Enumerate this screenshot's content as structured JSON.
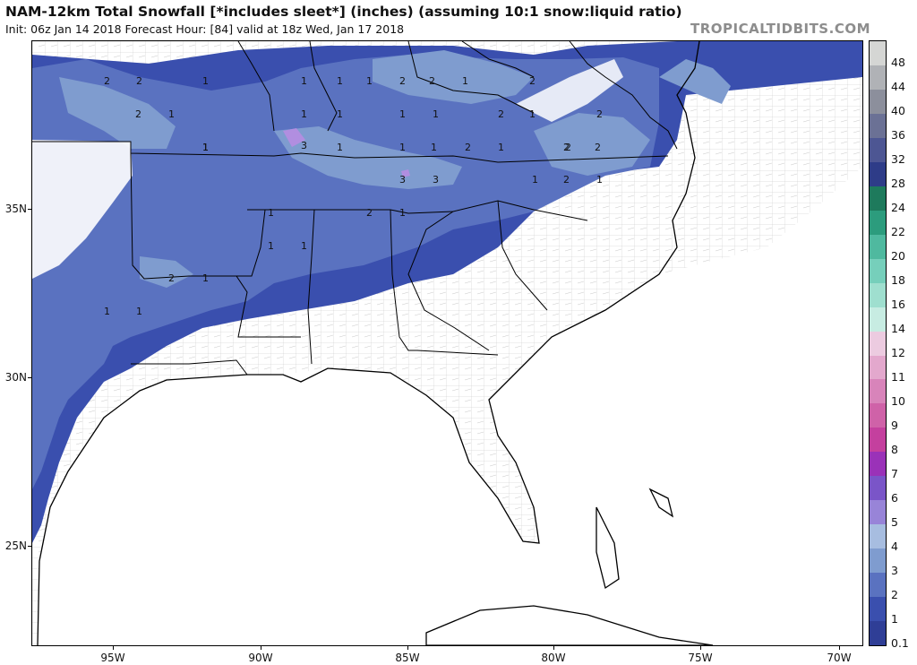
{
  "header": {
    "title": "NAM-12km Total Snowfall [*includes sleet*] (inches) (assuming 10:1 snow:liquid ratio)",
    "subtitle": "Init: 06z Jan 14 2018   Forecast Hour: [84]   valid at 18z Wed, Jan 17 2018",
    "brand": "TROPICALTIDBITS.COM"
  },
  "axes": {
    "lat_labels": [
      "35N",
      "30N",
      "25N"
    ],
    "lon_labels": [
      "95W",
      "90W",
      "85W",
      "80W",
      "75W",
      "70W"
    ]
  },
  "colorbar": {
    "levels": [
      "0.1",
      "1",
      "2",
      "3",
      "4",
      "5",
      "6",
      "7",
      "8",
      "9",
      "10",
      "11",
      "12",
      "14",
      "16",
      "18",
      "20",
      "22",
      "24",
      "28",
      "32",
      "36",
      "40",
      "44",
      "48"
    ],
    "colors": [
      "#2f3e96",
      "#3a4fae",
      "#5a72c0",
      "#7f9ccf",
      "#a7bde0",
      "#9884d8",
      "#7a55c8",
      "#9a32b8",
      "#c4409e",
      "#cf62a8",
      "#d884ba",
      "#e3a8cd",
      "#eccbe0",
      "#c7ece2",
      "#9fdfcf",
      "#76cfbb",
      "#4fb99f",
      "#2c9c7d",
      "#1e7a5c",
      "#2e3c88",
      "#4d5693",
      "#6b7195",
      "#8c8f9c",
      "#b0b2b6",
      "#d5d6d4"
    ]
  },
  "map_labels": {
    "snow_totals": [
      "2",
      "2",
      "1",
      "1",
      "1",
      "2",
      "2",
      "1",
      "2",
      "2",
      "1",
      "1",
      "1",
      "2",
      "2",
      "1",
      "1",
      "1",
      "1",
      "2",
      "3",
      "1",
      "1",
      "1",
      "1",
      "2",
      "1",
      "2",
      "2",
      "3",
      "3",
      "1",
      "2",
      "1",
      "2",
      "1",
      "1",
      "1",
      "1",
      "1",
      "2",
      "1",
      "1",
      "1"
    ]
  },
  "colors": {
    "snow_light": "#3a4fae",
    "snow_mid": "#5a72c0",
    "snow_heavy": "#7f9ccf",
    "snow_peak": "#b18ee0",
    "state_lines": "#000000",
    "county_lines": "#9a9a9a"
  }
}
